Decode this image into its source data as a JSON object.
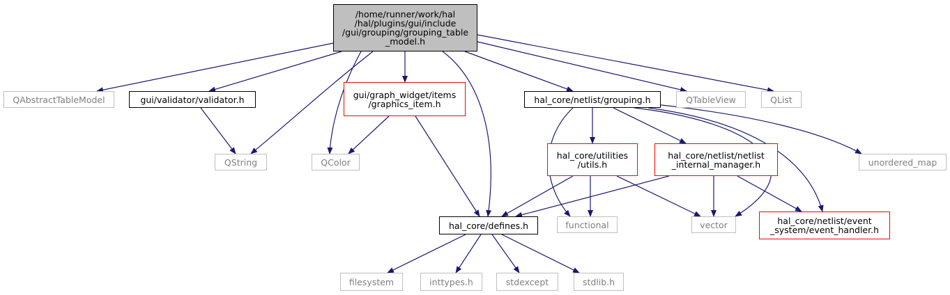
{
  "nodes": {
    "root": [
      "/home/runner/work/hal",
      "/hal/plugins/gui/include",
      "/gui/grouping/grouping_table",
      "_model.h"
    ],
    "qabstracttablemodel": [
      "QAbstractTableModel"
    ],
    "validator": [
      "gui/validator/validator.h"
    ],
    "graphics_item": [
      "gui/graph_widget/items",
      "/graphics_item.h"
    ],
    "grouping": [
      "hal_core/netlist/grouping.h"
    ],
    "qtableview": [
      "QTableView"
    ],
    "qlist": [
      "QList"
    ],
    "qstring": [
      "QString"
    ],
    "qcolor": [
      "QColor"
    ],
    "utils": [
      "hal_core/utilities",
      "/utils.h"
    ],
    "netlist_internal": [
      "hal_core/netlist/netlist",
      "_internal_manager.h"
    ],
    "unordered_map": [
      "unordered_map"
    ],
    "defines": [
      "hal_core/defines.h"
    ],
    "functional": [
      "functional"
    ],
    "vector": [
      "vector"
    ],
    "event_handler": [
      "hal_core/netlist/event",
      "_system/event_handler.h"
    ],
    "filesystem": [
      "filesystem"
    ],
    "inttypes": [
      "inttypes.h"
    ],
    "stdexcept": [
      "stdexcept"
    ],
    "stdlib": [
      "stdlib.h"
    ]
  },
  "colors": {
    "edge": "#191970",
    "root_fill": "#bfbfbf",
    "external_border": "#bfbfbf",
    "documented_border": "#000000",
    "incomplete_border": "#ff0000"
  }
}
